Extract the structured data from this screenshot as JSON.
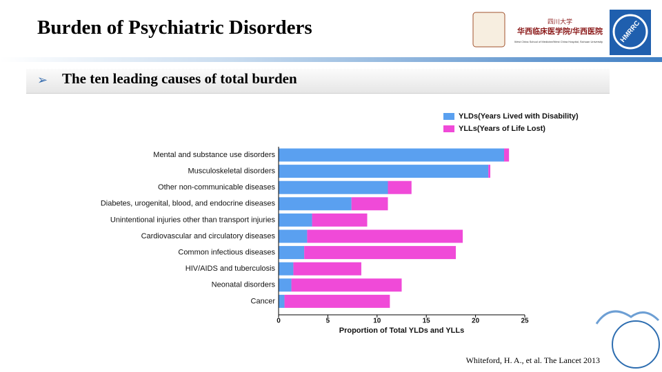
{
  "header": {
    "title": "Burden of Psychiatric Disorders",
    "subtitle": "The ten leading causes of total burden",
    "logo_name": "四川大学",
    "logo_school": "华西临床医学院/华西医院",
    "logo_english": "West China School of Medicine/West China Hospital, Sichuan University",
    "logo_badge": "HMRRC"
  },
  "citation": "Whiteford, H. A., et al. The Lancet 2013",
  "chart_data": {
    "type": "stacked-barh",
    "xlabel": "Proportion of Total YLDs and YLLs",
    "categories": [
      "Mental and substance use disorders",
      "Musculoskeletal disorders",
      "Other non-communicable diseases",
      "Diabetes, urogenital, blood, and endocrine diseases",
      "Unintentional injuries other than transport injuries",
      "Cardiovascular and circulatory diseases",
      "Common infectious diseases",
      "HIV/AIDS and tuberculosis",
      "Neonatal disorders",
      "Cancer"
    ],
    "series": [
      {
        "name": "YLDs(Years Lived with Disability)",
        "color": "#5aa0f0",
        "values": [
          22.9,
          21.3,
          11.1,
          7.4,
          3.4,
          2.9,
          2.6,
          1.5,
          1.3,
          0.6
        ]
      },
      {
        "name": "YLLs(Years of Life Lost)",
        "color": "#f04ad8",
        "values": [
          0.5,
          0.2,
          2.4,
          3.7,
          5.6,
          15.8,
          15.4,
          6.9,
          11.2,
          10.7
        ]
      }
    ],
    "xlim": [
      0,
      25
    ],
    "xticks": [
      0,
      5,
      10,
      15,
      20,
      25
    ],
    "legend": "top-right"
  }
}
